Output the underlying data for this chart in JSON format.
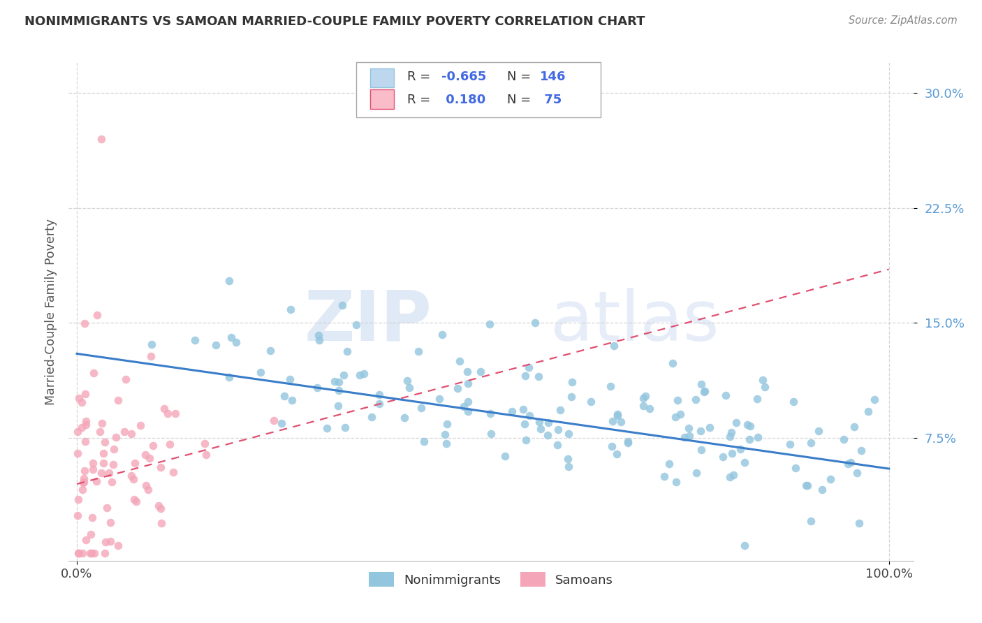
{
  "title": "NONIMMIGRANTS VS SAMOAN MARRIED-COUPLE FAMILY POVERTY CORRELATION CHART",
  "source": "Source: ZipAtlas.com",
  "ylabel": "Married-Couple Family Poverty",
  "legend_label1": "Nonimmigrants",
  "legend_label2": "Samoans",
  "R1": -0.665,
  "N1": 146,
  "R2": 0.18,
  "N2": 75,
  "color_blue": "#92C5DE",
  "color_blue_line": "#3A7DC9",
  "color_blue_light": "#BDD7EE",
  "color_pink": "#F4A6B8",
  "color_pink_line": "#E05070",
  "color_pink_light": "#FBBCCA",
  "xlim": [
    0.0,
    1.0
  ],
  "ylim": [
    0.0,
    0.32
  ],
  "y_tick_values": [
    0.075,
    0.15,
    0.225,
    0.3
  ],
  "y_tick_labels": [
    "7.5%",
    "15.0%",
    "22.5%",
    "30.0%"
  ],
  "x_tick_values": [
    0.0,
    1.0
  ],
  "x_tick_labels": [
    "0.0%",
    "100.0%"
  ],
  "watermark_zip": "ZIP",
  "watermark_atlas": "atlas",
  "background_color": "#ffffff",
  "grid_color": "#cccccc",
  "legend_text_color": "#4169E1",
  "title_color": "#333333",
  "ytick_color": "#5B9BD5",
  "source_color": "#888888"
}
